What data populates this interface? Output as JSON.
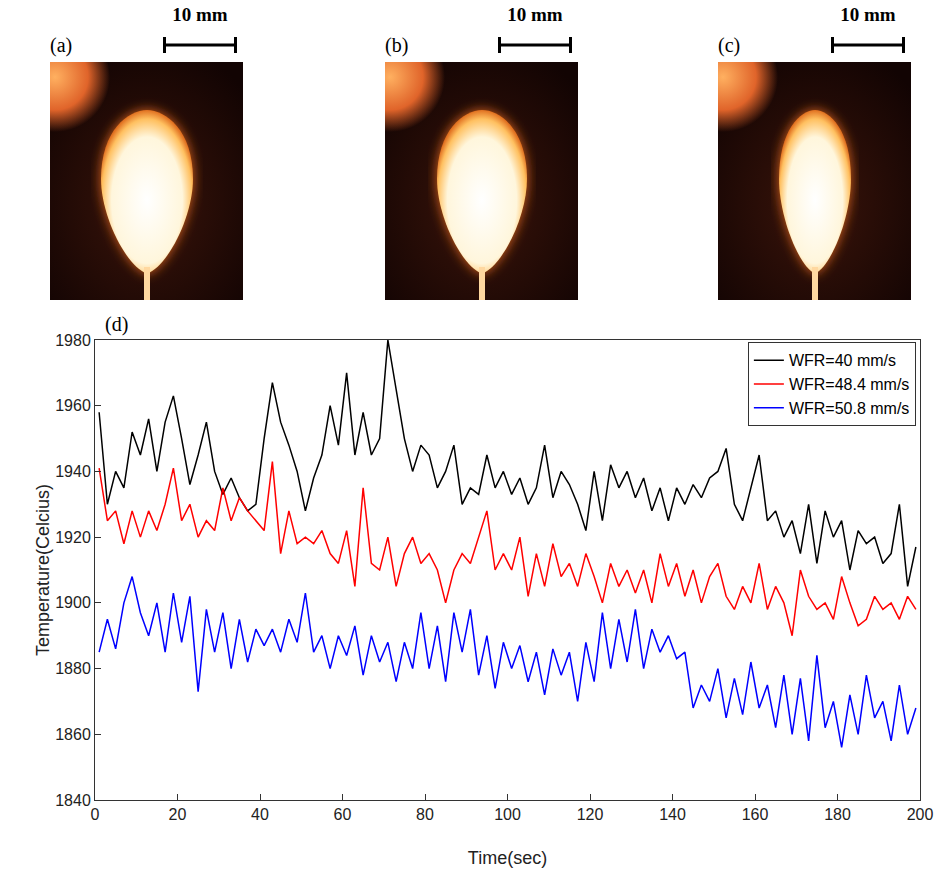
{
  "panels": [
    {
      "label": "(a)",
      "scale_bar": "10 mm"
    },
    {
      "label": "(b)",
      "scale_bar": "10 mm"
    },
    {
      "label": "(c)",
      "scale_bar": "10 mm"
    }
  ],
  "chart_data": {
    "type": "line",
    "annotations": [
      "(d)"
    ],
    "x_label": "Time(sec)",
    "y_label": "Temperature(Celcius)",
    "x": [
      1,
      3,
      5,
      7,
      9,
      11,
      13,
      15,
      17,
      19,
      21,
      23,
      25,
      27,
      29,
      31,
      33,
      35,
      37,
      39,
      41,
      43,
      45,
      47,
      49,
      51,
      53,
      55,
      57,
      59,
      61,
      63,
      65,
      67,
      69,
      71,
      73,
      75,
      77,
      79,
      81,
      83,
      85,
      87,
      89,
      91,
      93,
      95,
      97,
      99,
      101,
      103,
      105,
      107,
      109,
      111,
      113,
      115,
      117,
      119,
      121,
      123,
      125,
      127,
      129,
      131,
      133,
      135,
      137,
      139,
      141,
      143,
      145,
      147,
      149,
      151,
      153,
      155,
      157,
      159,
      161,
      163,
      165,
      167,
      169,
      171,
      173,
      175,
      177,
      179,
      181,
      183,
      185,
      187,
      189,
      191,
      193,
      195,
      197,
      199
    ],
    "series": [
      {
        "name": "WFR=40 mm/s",
        "color": "#000000",
        "values": [
          1958,
          1930,
          1940,
          1935,
          1952,
          1945,
          1956,
          1940,
          1955,
          1963,
          1950,
          1936,
          1945,
          1955,
          1940,
          1933,
          1938,
          1932,
          1928,
          1930,
          1950,
          1967,
          1955,
          1948,
          1940,
          1928,
          1938,
          1945,
          1960,
          1948,
          1970,
          1945,
          1958,
          1945,
          1950,
          1980,
          1965,
          1950,
          1940,
          1948,
          1945,
          1935,
          1940,
          1948,
          1930,
          1935,
          1933,
          1945,
          1935,
          1940,
          1933,
          1938,
          1930,
          1935,
          1948,
          1932,
          1940,
          1936,
          1930,
          1922,
          1940,
          1925,
          1942,
          1935,
          1940,
          1932,
          1938,
          1928,
          1935,
          1925,
          1935,
          1930,
          1936,
          1932,
          1938,
          1940,
          1947,
          1930,
          1925,
          1935,
          1945,
          1925,
          1928,
          1920,
          1925,
          1915,
          1930,
          1912,
          1928,
          1920,
          1925,
          1910,
          1922,
          1918,
          1920,
          1912,
          1915,
          1930,
          1905,
          1917
        ]
      },
      {
        "name": "WFR=48.4 mm/s",
        "color": "#ff0000",
        "values": [
          1941,
          1925,
          1928,
          1918,
          1928,
          1920,
          1928,
          1922,
          1930,
          1941,
          1925,
          1930,
          1920,
          1925,
          1922,
          1935,
          1925,
          1932,
          1928,
          1925,
          1922,
          1943,
          1915,
          1928,
          1918,
          1920,
          1918,
          1922,
          1915,
          1912,
          1922,
          1905,
          1935,
          1912,
          1910,
          1920,
          1905,
          1915,
          1920,
          1912,
          1915,
          1910,
          1900,
          1910,
          1915,
          1912,
          1920,
          1928,
          1910,
          1915,
          1910,
          1920,
          1902,
          1915,
          1905,
          1918,
          1908,
          1912,
          1905,
          1915,
          1908,
          1900,
          1912,
          1905,
          1910,
          1903,
          1910,
          1900,
          1915,
          1905,
          1912,
          1902,
          1910,
          1900,
          1908,
          1912,
          1902,
          1898,
          1905,
          1900,
          1912,
          1898,
          1905,
          1900,
          1890,
          1910,
          1902,
          1898,
          1900,
          1895,
          1908,
          1900,
          1893,
          1895,
          1902,
          1898,
          1900,
          1895,
          1902,
          1898
        ]
      },
      {
        "name": "WFR=50.8 mm/s",
        "color": "#0000ff",
        "values": [
          1885,
          1895,
          1886,
          1900,
          1908,
          1897,
          1890,
          1900,
          1885,
          1903,
          1888,
          1902,
          1873,
          1898,
          1885,
          1897,
          1880,
          1895,
          1882,
          1892,
          1887,
          1892,
          1885,
          1895,
          1888,
          1903,
          1885,
          1890,
          1880,
          1890,
          1884,
          1893,
          1878,
          1890,
          1882,
          1888,
          1876,
          1888,
          1880,
          1897,
          1880,
          1893,
          1876,
          1897,
          1885,
          1898,
          1878,
          1890,
          1874,
          1888,
          1880,
          1887,
          1876,
          1885,
          1872,
          1886,
          1878,
          1885,
          1870,
          1888,
          1876,
          1897,
          1880,
          1895,
          1882,
          1898,
          1880,
          1892,
          1885,
          1890,
          1883,
          1885,
          1868,
          1875,
          1870,
          1880,
          1865,
          1877,
          1866,
          1882,
          1868,
          1875,
          1862,
          1878,
          1860,
          1877,
          1858,
          1884,
          1862,
          1870,
          1856,
          1872,
          1860,
          1878,
          1865,
          1870,
          1858,
          1875,
          1860,
          1868
        ]
      }
    ],
    "xlim": [
      0,
      200
    ],
    "xticks": [
      0,
      20,
      40,
      60,
      80,
      100,
      120,
      140,
      160,
      180,
      200
    ],
    "ylim": [
      1840,
      1980
    ],
    "yticks": [
      1840,
      1860,
      1880,
      1900,
      1920,
      1940,
      1960,
      1980
    ],
    "grid": false,
    "legend": "top right"
  }
}
